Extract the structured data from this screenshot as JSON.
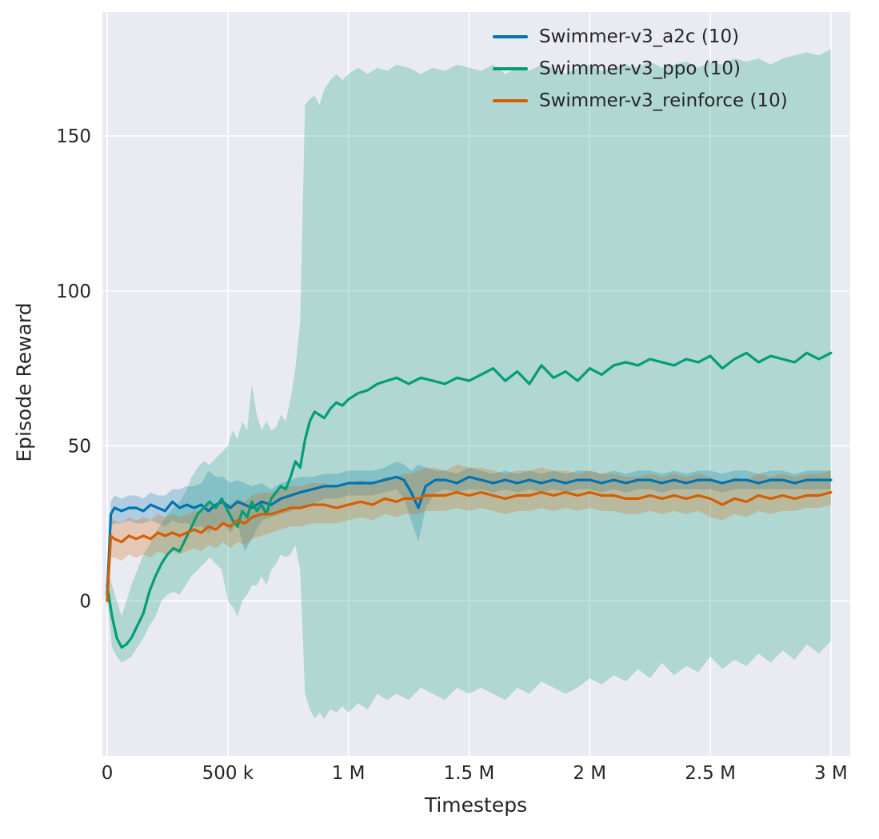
{
  "chart_data": {
    "type": "line",
    "title": "",
    "xlabel": "Timesteps",
    "ylabel": "Episode Reward",
    "x_unit": "thousands of timesteps",
    "xlim": [
      -20,
      3080
    ],
    "ylim": [
      -50,
      190
    ],
    "background": "#eaeaf2",
    "grid_color": "#ffffff",
    "text_color": "#262626",
    "grid": true,
    "legend_position": "upper center-right inside plot",
    "x_ticks": [
      {
        "value": 0,
        "label": "0"
      },
      {
        "value": 500,
        "label": "500 k"
      },
      {
        "value": 1000,
        "label": "1 M"
      },
      {
        "value": 1500,
        "label": "1.5 M"
      },
      {
        "value": 2000,
        "label": "2 M"
      },
      {
        "value": 2500,
        "label": "2.5 M"
      },
      {
        "value": 3000,
        "label": "3 M"
      }
    ],
    "y_ticks": [
      {
        "value": 0,
        "label": "0"
      },
      {
        "value": 50,
        "label": "50"
      },
      {
        "value": 100,
        "label": "100"
      },
      {
        "value": 150,
        "label": "150"
      }
    ],
    "series": [
      {
        "name": "Swimmer-v3_a2c (10)",
        "color": "#0173b2",
        "band_opacity": 0.25,
        "x": [
          0,
          15,
          30,
          60,
          90,
          120,
          150,
          180,
          210,
          240,
          270,
          300,
          330,
          360,
          390,
          420,
          450,
          480,
          510,
          540,
          570,
          600,
          640,
          680,
          720,
          760,
          800,
          850,
          900,
          950,
          1000,
          1050,
          1100,
          1150,
          1200,
          1230,
          1260,
          1290,
          1320,
          1360,
          1400,
          1450,
          1500,
          1550,
          1600,
          1650,
          1700,
          1750,
          1800,
          1850,
          1900,
          1950,
          2000,
          2050,
          2100,
          2150,
          2200,
          2250,
          2300,
          2350,
          2400,
          2450,
          2500,
          2550,
          2600,
          2650,
          2700,
          2750,
          2800,
          2850,
          2900,
          2950,
          3000
        ],
        "y": [
          2,
          28,
          30,
          29,
          30,
          30,
          29,
          31,
          30,
          29,
          32,
          30,
          31,
          30,
          31,
          29,
          31,
          32,
          30,
          32,
          31,
          30,
          32,
          31,
          33,
          34,
          35,
          36,
          37,
          37,
          38,
          38,
          38,
          39,
          40,
          39,
          35,
          30,
          37,
          39,
          39,
          38,
          40,
          39,
          38,
          39,
          38,
          39,
          38,
          39,
          38,
          39,
          39,
          38,
          39,
          38,
          39,
          39,
          38,
          39,
          38,
          39,
          39,
          38,
          39,
          39,
          38,
          39,
          39,
          38,
          39,
          39,
          39
        ],
        "band_lower": [
          0,
          24,
          25,
          25,
          26,
          25,
          25,
          26,
          25,
          24,
          26,
          25,
          25,
          24,
          24,
          22,
          24,
          25,
          22,
          25,
          16,
          20,
          26,
          27,
          28,
          29,
          30,
          31,
          33,
          33,
          34,
          34,
          34,
          35,
          36,
          33,
          26,
          19,
          30,
          35,
          36,
          35,
          36,
          36,
          35,
          36,
          35,
          36,
          35,
          36,
          35,
          36,
          36,
          35,
          36,
          35,
          36,
          36,
          35,
          36,
          36,
          36,
          36,
          35,
          36,
          36,
          36,
          36,
          36,
          36,
          36,
          36,
          36
        ],
        "band_upper": [
          5,
          32,
          34,
          33,
          34,
          34,
          33,
          35,
          34,
          34,
          36,
          36,
          37,
          37,
          38,
          42,
          40,
          40,
          38,
          39,
          38,
          37,
          38,
          36,
          38,
          39,
          40,
          40,
          41,
          41,
          42,
          42,
          42,
          43,
          45,
          44,
          42,
          44,
          43,
          42,
          42,
          41,
          43,
          42,
          41,
          42,
          41,
          42,
          41,
          42,
          41,
          42,
          42,
          41,
          42,
          41,
          42,
          42,
          41,
          42,
          41,
          42,
          42,
          41,
          42,
          42,
          41,
          42,
          42,
          41,
          42,
          42,
          42
        ]
      },
      {
        "name": "Swimmer-v3_ppo (10)",
        "color": "#029e73",
        "band_opacity": 0.25,
        "x": [
          0,
          20,
          40,
          60,
          80,
          100,
          125,
          150,
          175,
          200,
          225,
          250,
          275,
          300,
          325,
          350,
          375,
          400,
          425,
          450,
          475,
          500,
          520,
          540,
          560,
          580,
          600,
          620,
          640,
          660,
          680,
          700,
          720,
          740,
          760,
          780,
          800,
          820,
          840,
          860,
          880,
          900,
          925,
          950,
          975,
          1000,
          1040,
          1080,
          1120,
          1160,
          1200,
          1250,
          1300,
          1350,
          1400,
          1450,
          1500,
          1550,
          1600,
          1650,
          1700,
          1750,
          1800,
          1850,
          1900,
          1950,
          2000,
          2050,
          2100,
          2150,
          2200,
          2250,
          2300,
          2350,
          2400,
          2450,
          2500,
          2550,
          2600,
          2650,
          2700,
          2750,
          2800,
          2850,
          2900,
          2950,
          3000
        ],
        "y": [
          5,
          -5,
          -12,
          -15,
          -14,
          -12,
          -8,
          -4,
          3,
          8,
          12,
          15,
          17,
          16,
          20,
          24,
          28,
          30,
          32,
          30,
          33,
          29,
          26,
          24,
          29,
          27,
          32,
          29,
          31,
          28,
          33,
          35,
          37,
          36,
          40,
          45,
          43,
          52,
          58,
          61,
          60,
          59,
          62,
          64,
          63,
          65,
          67,
          68,
          70,
          71,
          72,
          70,
          72,
          71,
          70,
          72,
          71,
          73,
          75,
          71,
          74,
          70,
          76,
          72,
          74,
          71,
          75,
          73,
          76,
          77,
          76,
          78,
          77,
          76,
          78,
          77,
          79,
          75,
          78,
          80,
          77,
          79,
          78,
          77,
          80,
          78,
          80
        ],
        "band_lower": [
          0,
          -15,
          -18,
          -20,
          -19,
          -18,
          -15,
          -12,
          -8,
          -5,
          0,
          2,
          3,
          2,
          5,
          8,
          10,
          12,
          14,
          12,
          10,
          0,
          -2,
          -5,
          0,
          2,
          5,
          5,
          8,
          5,
          10,
          12,
          15,
          14,
          15,
          18,
          10,
          -30,
          -35,
          -38,
          -36,
          -38,
          -35,
          -36,
          -34,
          -36,
          -33,
          -35,
          -30,
          -32,
          -30,
          -32,
          -28,
          -30,
          -32,
          -28,
          -30,
          -28,
          -30,
          -32,
          -28,
          -30,
          -26,
          -28,
          -30,
          -28,
          -25,
          -27,
          -24,
          -26,
          -22,
          -25,
          -20,
          -24,
          -21,
          -23,
          -18,
          -22,
          -19,
          -21,
          -17,
          -20,
          -16,
          -19,
          -14,
          -17,
          -13
        ],
        "band_upper": [
          10,
          5,
          0,
          -5,
          0,
          5,
          10,
          15,
          18,
          22,
          25,
          28,
          30,
          32,
          35,
          40,
          43,
          45,
          44,
          46,
          48,
          50,
          55,
          52,
          58,
          55,
          70,
          60,
          55,
          58,
          55,
          56,
          60,
          58,
          65,
          75,
          90,
          160,
          162,
          163,
          160,
          165,
          168,
          170,
          168,
          170,
          172,
          170,
          172,
          171,
          173,
          172,
          170,
          172,
          171,
          173,
          172,
          171,
          173,
          170,
          172,
          171,
          173,
          172,
          170,
          172,
          173,
          171,
          172,
          173,
          172,
          174,
          172,
          173,
          174,
          172,
          174,
          173,
          175,
          174,
          175,
          173,
          175,
          176,
          177,
          176,
          178
        ]
      },
      {
        "name": "Swimmer-v3_reinforce (10)",
        "color": "#d55e00",
        "band_opacity": 0.25,
        "x": [
          0,
          15,
          30,
          60,
          90,
          120,
          150,
          180,
          210,
          240,
          270,
          300,
          330,
          360,
          390,
          420,
          450,
          480,
          510,
          540,
          570,
          600,
          640,
          680,
          720,
          760,
          800,
          850,
          900,
          950,
          1000,
          1050,
          1100,
          1150,
          1200,
          1230,
          1260,
          1290,
          1320,
          1360,
          1400,
          1450,
          1500,
          1550,
          1600,
          1650,
          1700,
          1750,
          1800,
          1850,
          1900,
          1950,
          2000,
          2050,
          2100,
          2150,
          2200,
          2250,
          2300,
          2350,
          2400,
          2450,
          2500,
          2550,
          2600,
          2650,
          2700,
          2750,
          2800,
          2850,
          2900,
          2950,
          3000
        ],
        "y": [
          0,
          21,
          20,
          19,
          21,
          20,
          21,
          20,
          22,
          21,
          22,
          21,
          22,
          23,
          22,
          24,
          23,
          25,
          24,
          26,
          25,
          27,
          28,
          28,
          29,
          30,
          30,
          31,
          31,
          30,
          31,
          32,
          31,
          33,
          32,
          33,
          33,
          33,
          34,
          34,
          34,
          35,
          34,
          35,
          34,
          33,
          34,
          34,
          35,
          34,
          35,
          34,
          35,
          34,
          34,
          33,
          33,
          34,
          33,
          34,
          33,
          34,
          33,
          31,
          33,
          32,
          34,
          33,
          34,
          33,
          34,
          34,
          35
        ],
        "band_lower": [
          -2,
          14,
          14,
          13,
          15,
          14,
          15,
          14,
          16,
          15,
          16,
          15,
          16,
          17,
          16,
          18,
          17,
          19,
          17,
          19,
          18,
          20,
          21,
          22,
          23,
          24,
          24,
          25,
          25,
          25,
          26,
          27,
          26,
          28,
          27,
          28,
          28,
          28,
          29,
          29,
          29,
          30,
          29,
          30,
          29,
          28,
          29,
          29,
          30,
          29,
          30,
          29,
          30,
          29,
          29,
          28,
          28,
          29,
          28,
          29,
          28,
          29,
          27,
          26,
          28,
          27,
          29,
          28,
          29,
          29,
          30,
          30,
          31
        ],
        "band_upper": [
          3,
          27,
          26,
          25,
          27,
          26,
          27,
          26,
          28,
          27,
          28,
          27,
          28,
          29,
          29,
          31,
          30,
          32,
          31,
          33,
          32,
          34,
          35,
          35,
          36,
          37,
          37,
          38,
          38,
          37,
          38,
          39,
          38,
          40,
          40,
          41,
          41,
          42,
          43,
          43,
          42,
          44,
          43,
          43,
          42,
          41,
          42,
          42,
          43,
          42,
          42,
          41,
          42,
          41,
          41,
          40,
          40,
          41,
          40,
          41,
          40,
          41,
          40,
          38,
          40,
          39,
          41,
          40,
          41,
          40,
          41,
          41,
          42
        ]
      }
    ]
  }
}
